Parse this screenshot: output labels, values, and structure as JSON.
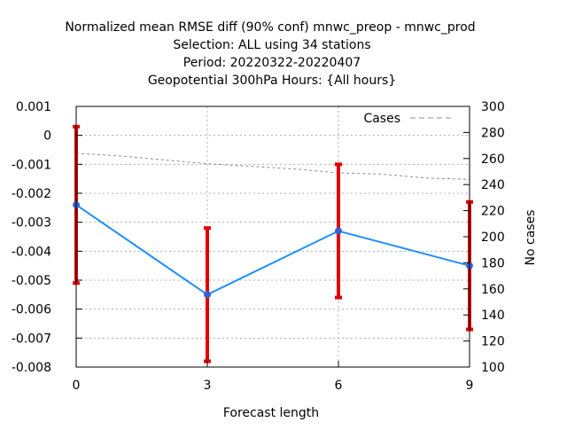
{
  "chart_data": {
    "type": "line",
    "title_lines": [
      "Normalized mean RMSE diff (90% conf) mnwc_preop - mnwc_prod",
      "Selection: ALL using    34 stations",
      "Period: 20220322-20220407",
      "Geopotential 300hPa   Hours: {All hours}"
    ],
    "xlabel": "Forecast length",
    "ylabel": "",
    "y2label": "No cases",
    "x": [
      0,
      3,
      6,
      9
    ],
    "xlim": [
      0,
      9
    ],
    "ylim": [
      -0.008,
      0.001
    ],
    "y2lim": [
      100,
      300
    ],
    "xticks": [
      "0",
      "3",
      "6",
      "9"
    ],
    "yticks": [
      {
        "v": 0.001,
        "label": "0.001"
      },
      {
        "v": 0,
        "label": "0"
      },
      {
        "v": -0.001,
        "label": "-0.001"
      },
      {
        "v": -0.002,
        "label": "-0.002"
      },
      {
        "v": -0.003,
        "label": "-0.003"
      },
      {
        "v": -0.004,
        "label": "-0.004"
      },
      {
        "v": -0.005,
        "label": "-0.005"
      },
      {
        "v": -0.006,
        "label": "-0.006"
      },
      {
        "v": -0.007,
        "label": "-0.007"
      },
      {
        "v": -0.008,
        "label": "-0.008"
      }
    ],
    "y2ticks": [
      {
        "v": 300,
        "label": "300"
      },
      {
        "v": 280,
        "label": "280"
      },
      {
        "v": 260,
        "label": "260"
      },
      {
        "v": 240,
        "label": "240"
      },
      {
        "v": 220,
        "label": "220"
      },
      {
        "v": 200,
        "label": "200"
      },
      {
        "v": 180,
        "label": "180"
      },
      {
        "v": 160,
        "label": "160"
      },
      {
        "v": 140,
        "label": "140"
      },
      {
        "v": 120,
        "label": "120"
      },
      {
        "v": 100,
        "label": "100"
      }
    ],
    "grid": true,
    "legend_position": "top-right",
    "series": [
      {
        "values": [
          -0.0024,
          -0.0055,
          -0.0033,
          -0.0045
        ],
        "err_low": [
          -0.0051,
          -0.0078,
          -0.0056,
          -0.0067
        ],
        "err_high": [
          0.0003,
          -0.0032,
          -0.001,
          -0.0023
        ],
        "color": "#1e90ff",
        "marker_color": "#3a5fcd",
        "err_color": "#e00000"
      },
      {
        "name": "Cases",
        "axis": "y2",
        "x": [
          0,
          1,
          2,
          3,
          4,
          5,
          6,
          7,
          8,
          9
        ],
        "values": [
          264,
          262,
          259,
          256,
          254,
          252,
          249,
          248,
          245,
          244
        ],
        "color": "#8c8c8c",
        "dashed": true
      }
    ]
  }
}
